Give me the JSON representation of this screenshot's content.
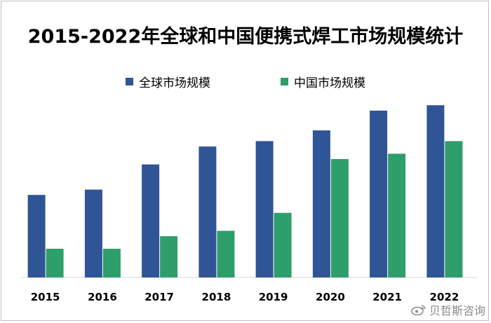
{
  "chart_data": {
    "type": "bar",
    "title": "2015-2022年全球和中国便携式焊工市场规模统计",
    "categories": [
      "2015",
      "2016",
      "2017",
      "2018",
      "2019",
      "2020",
      "2021",
      "2022"
    ],
    "series": [
      {
        "name": "全球市场规模",
        "color": "#2f5597",
        "values": [
          46,
          49,
          63,
          73,
          76,
          82,
          93,
          96
        ]
      },
      {
        "name": "中国市场规模",
        "color": "#2e9e6b",
        "values": [
          16,
          16,
          23,
          26,
          36,
          66,
          69,
          76
        ]
      }
    ],
    "ylim": [
      0,
      100
    ],
    "grid": false,
    "legend_position": "top-center"
  },
  "watermark": {
    "text": "贝哲斯咨询",
    "icon": "weibo-icon"
  }
}
